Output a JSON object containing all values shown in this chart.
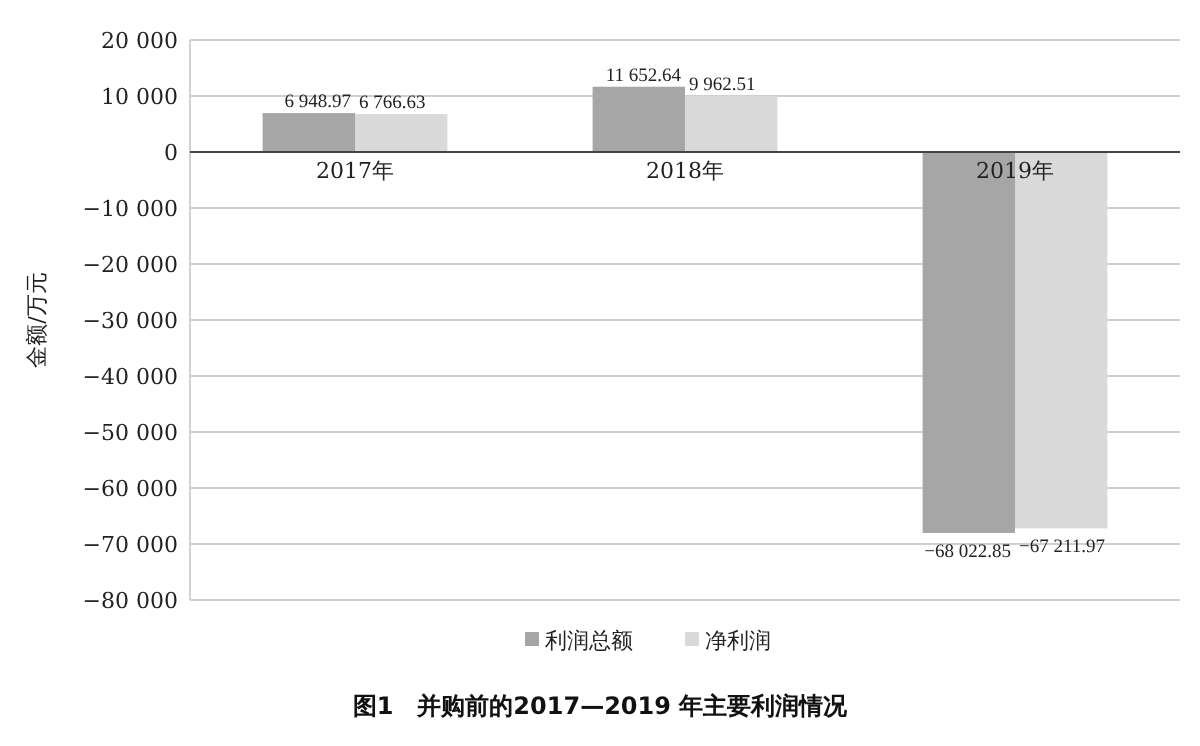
{
  "chart_data": {
    "type": "bar",
    "title": "图1　并购前的2017—2019 年主要利润情况",
    "ylabel": "金额/万元",
    "categories": [
      "2017年",
      "2018年",
      "2019年"
    ],
    "series": [
      {
        "name": "利润总额",
        "color": "#a6a6a6",
        "values": [
          6948.97,
          11652.64,
          -68022.85
        ],
        "value_labels": [
          "6 948.97",
          "11 652.64",
          "−68 022.85"
        ]
      },
      {
        "name": "净利润",
        "color": "#d9d9d9",
        "values": [
          6766.63,
          9962.51,
          -67211.97
        ],
        "value_labels": [
          "6 766.63",
          "9 962.51",
          "−67 211.97"
        ]
      }
    ],
    "ylim": [
      -80000,
      20000
    ],
    "yticks": [
      {
        "value": 20000,
        "label": "20 000"
      },
      {
        "value": 10000,
        "label": "10 000"
      },
      {
        "value": 0,
        "label": "0"
      },
      {
        "value": -10000,
        "label": "−10 000"
      },
      {
        "value": -20000,
        "label": "−20 000"
      },
      {
        "value": -30000,
        "label": "−30 000"
      },
      {
        "value": -40000,
        "label": "−40 000"
      },
      {
        "value": -50000,
        "label": "−50 000"
      },
      {
        "value": -60000,
        "label": "−60 000"
      },
      {
        "value": -70000,
        "label": "−70 000"
      },
      {
        "value": -80000,
        "label": "−80 000"
      }
    ],
    "grid": "y",
    "legend": "bottom"
  }
}
